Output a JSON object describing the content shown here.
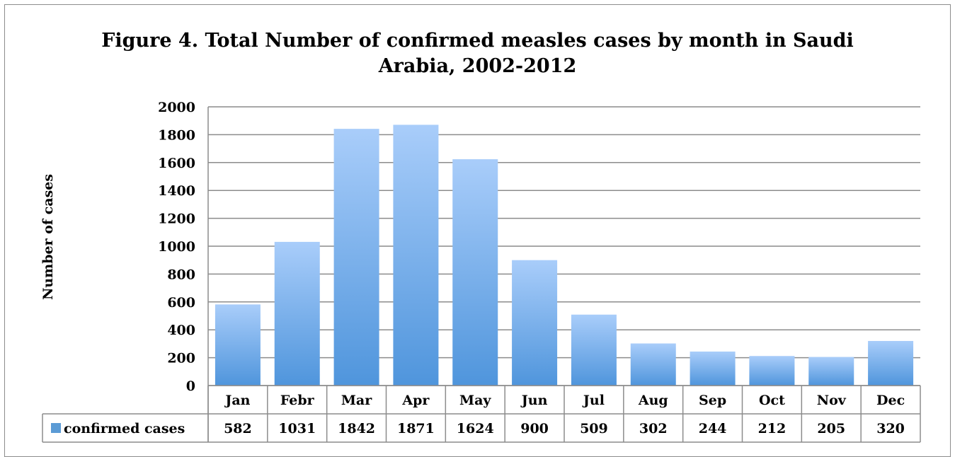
{
  "chart_data": {
    "type": "bar",
    "title": "Figure 4. Total Number of confirmed measles cases by month in Saudi Arabia, 2002-2012",
    "title_line1": "Figure 4. Total Number of confirmed measles cases by month in Saudi",
    "title_line2": "Arabia, 2002-2012",
    "ylabel": "Number of cases",
    "xlabel": "",
    "ylim": [
      0,
      2000
    ],
    "yticks": [
      0,
      200,
      400,
      600,
      800,
      1000,
      1200,
      1400,
      1600,
      1800,
      2000
    ],
    "grid": true,
    "categories": [
      "Jan",
      "Febr",
      "Mar",
      "Apr",
      "May",
      "Jun",
      "Jul",
      "Aug",
      "Sep",
      "Oct",
      "Nov",
      "Dec"
    ],
    "series": [
      {
        "name": "confirmed cases",
        "values": [
          582,
          1031,
          1842,
          1871,
          1624,
          900,
          509,
          302,
          244,
          212,
          205,
          320
        ]
      }
    ],
    "legend": "data-table",
    "colors": {
      "bar_top": "#a9cdfa",
      "bar_bottom": "#4f95dc",
      "legend_key": "#5b9bd5"
    }
  }
}
